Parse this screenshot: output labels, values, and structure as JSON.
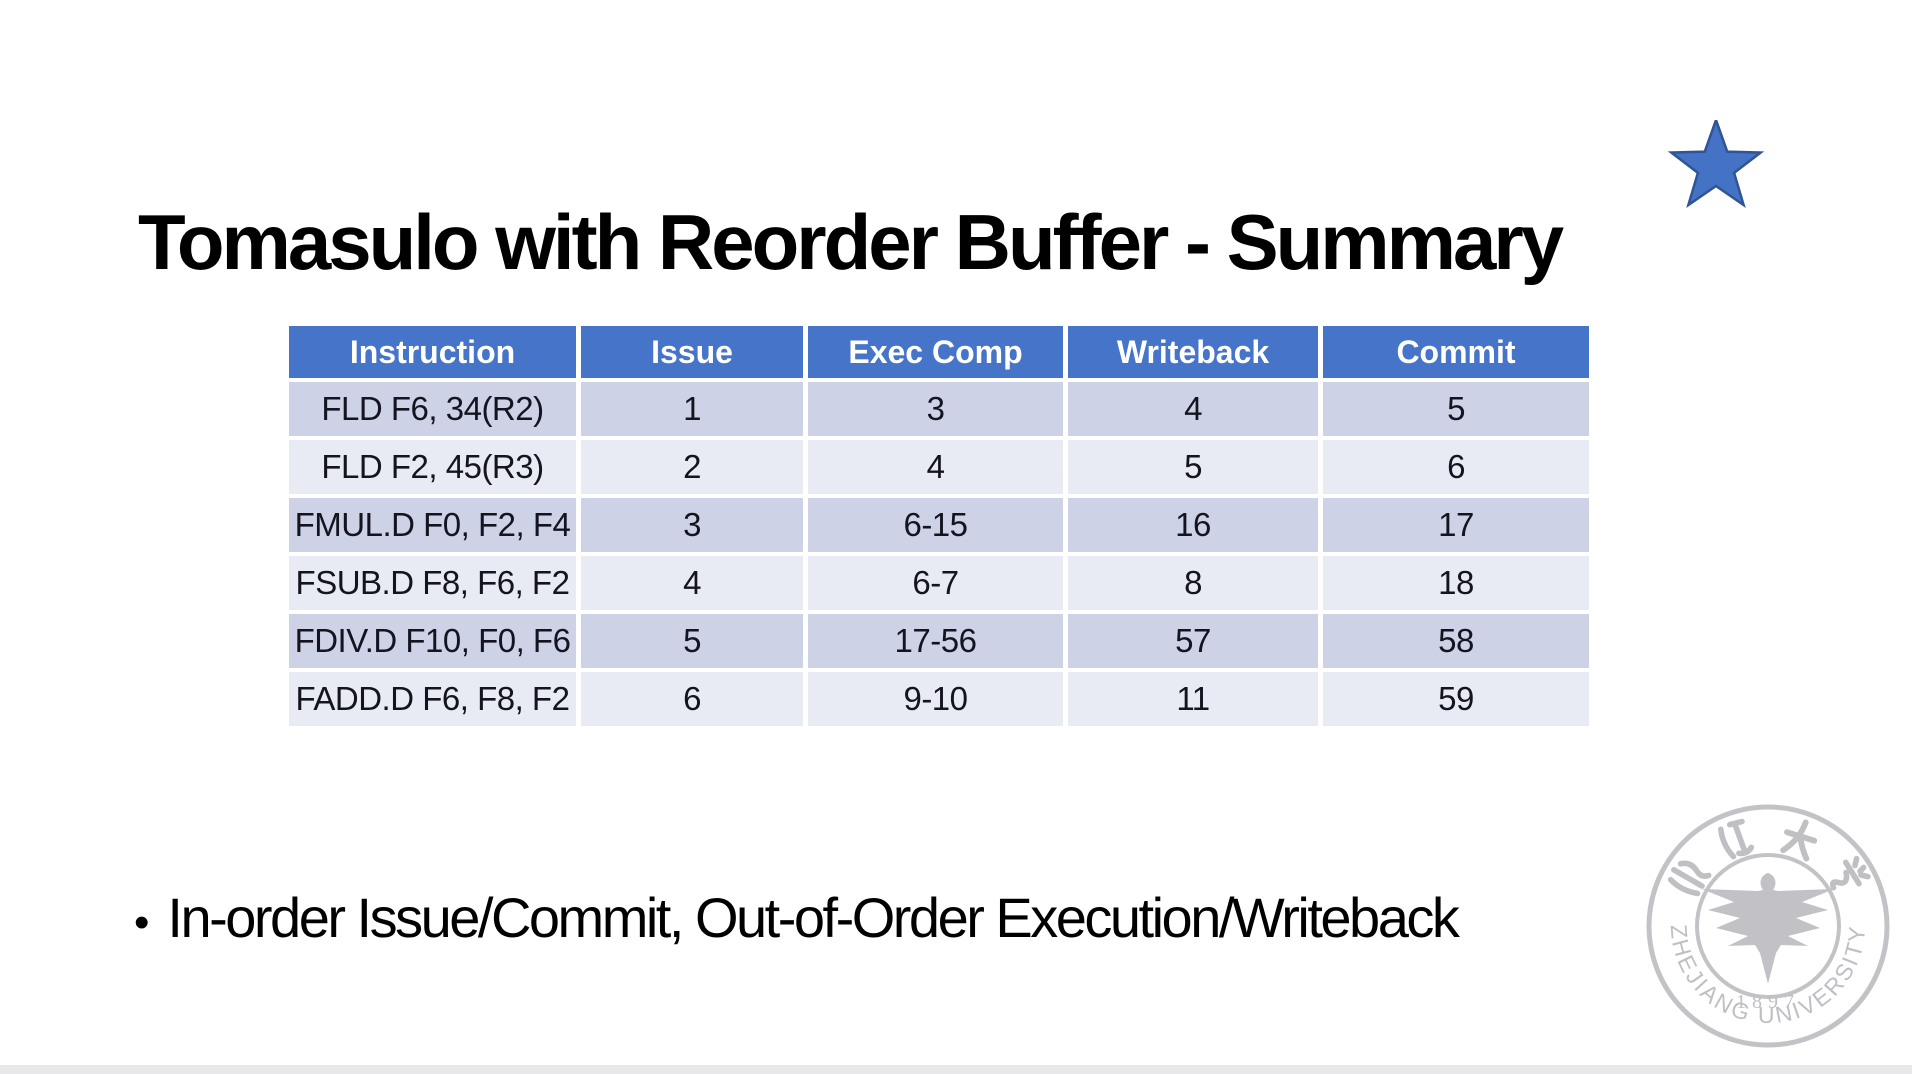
{
  "slide": {
    "title": "Tomasulo with Reorder Buffer - Summary",
    "bullet_char": "•",
    "bullet_text": "In-order Issue/Commit, Out-of-Order Execution/Writeback"
  },
  "table": {
    "columns": [
      "Instruction",
      "Issue",
      "Exec Comp",
      "Writeback",
      "Commit"
    ],
    "rows": [
      [
        "FLD F6, 34(R2)",
        "1",
        "3",
        "4",
        "5"
      ],
      [
        "FLD F2, 45(R3)",
        "2",
        "4",
        "5",
        "6"
      ],
      [
        "FMUL.D F0, F2, F4",
        "3",
        "6-15",
        "16",
        "17"
      ],
      [
        "FSUB.D F8, F6, F2",
        "4",
        "6-7",
        "8",
        "18"
      ],
      [
        "FDIV.D F10, F0, F6",
        "5",
        "17-56",
        "57",
        "58"
      ],
      [
        "FADD.D F6, F8, F2",
        "6",
        "9-10",
        "11",
        "59"
      ]
    ]
  },
  "logo": {
    "top_text": "浙江大学",
    "year": "1897",
    "bottom_text": "ZHEJIANG UNIVERSITY"
  },
  "colors": {
    "table_header_bg": "#4574C8",
    "row_band_dark": "#CDD2E7",
    "row_band_light": "#E9EBF4",
    "star_fill": "#4472C4",
    "star_border": "#2F5597",
    "logo_gray": "#C1C1C5",
    "bottom_bar": "#E8E8EA"
  }
}
